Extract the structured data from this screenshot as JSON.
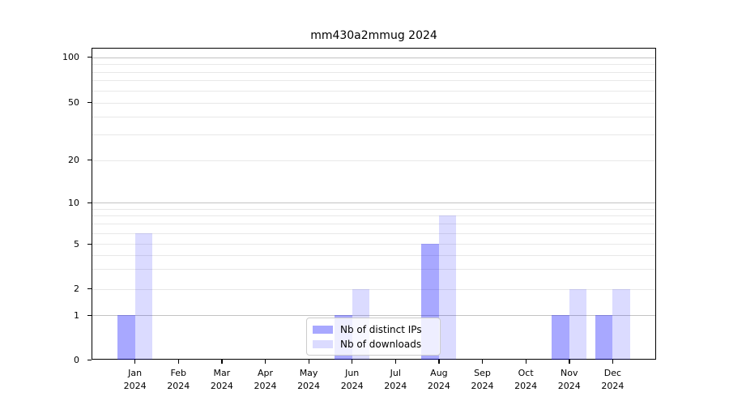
{
  "title": "mm430a2mmug 2024",
  "chart_data": {
    "type": "bar",
    "title": "mm430a2mmug 2024",
    "categories": [
      "Jan 2024",
      "Feb 2024",
      "Mar 2024",
      "Apr 2024",
      "May 2024",
      "Jun 2024",
      "Jul 2024",
      "Aug 2024",
      "Sep 2024",
      "Oct 2024",
      "Nov 2024",
      "Dec 2024"
    ],
    "series": [
      {
        "name": "Nb of distinct IPs",
        "color": "rgba(0,0,255,0.34)",
        "values": [
          1,
          0,
          0,
          0,
          0,
          1,
          0,
          5,
          0,
          0,
          1,
          1
        ]
      },
      {
        "name": "Nb of downloads",
        "color": "rgba(0,0,255,0.14)",
        "values": [
          6,
          0,
          0,
          0,
          0,
          2,
          0,
          8,
          0,
          0,
          2,
          2
        ]
      }
    ],
    "xlabel": "",
    "ylabel": "",
    "ylim": [
      0,
      100
    ],
    "yticks_labeled": [
      0,
      1,
      2,
      5,
      10,
      20,
      50,
      100
    ],
    "scale": "log (1-2-5 labeled ticks) with linear segment from 0 to 1",
    "grid": "horizontal, dark lines at decades 1/10/100, light minor lines at 2-9 and 20-90 steps",
    "legend_position": "inside bottom-center",
    "legend_entries": [
      "Nb of distinct IPs",
      "Nb of downloads"
    ]
  }
}
